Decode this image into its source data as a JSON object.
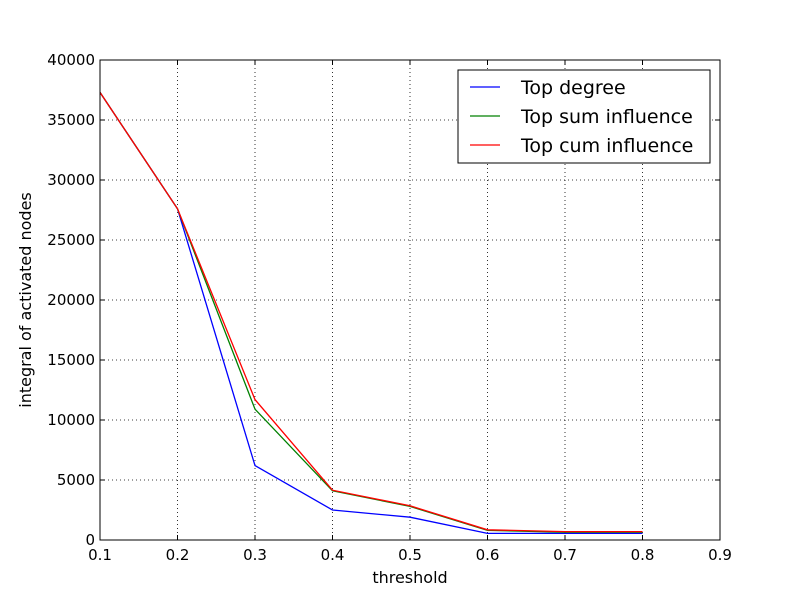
{
  "chart_data": {
    "type": "line",
    "xlabel": "threshold",
    "ylabel": "integral of activated nodes",
    "xlim": [
      0.1,
      0.9
    ],
    "ylim": [
      0,
      40000
    ],
    "xticks": [
      "0.1",
      "0.2",
      "0.3",
      "0.4",
      "0.5",
      "0.6",
      "0.7",
      "0.8",
      "0.9"
    ],
    "yticks": [
      "0",
      "5000",
      "10000",
      "15000",
      "20000",
      "25000",
      "30000",
      "35000",
      "40000"
    ],
    "grid": true,
    "legend_position": "top-right",
    "x": [
      0.1,
      0.2,
      0.3,
      0.4,
      0.5,
      0.6,
      0.7,
      0.8
    ],
    "series": [
      {
        "name": "Top degree",
        "color": "#0000ff",
        "values": [
          37300,
          27600,
          6200,
          2500,
          1900,
          550,
          550,
          550
        ]
      },
      {
        "name": "Top sum influence",
        "color": "#008000",
        "values": [
          37300,
          27600,
          10900,
          4100,
          2800,
          800,
          650,
          650
        ]
      },
      {
        "name": "Top cum influence",
        "color": "#ff0000",
        "values": [
          37300,
          27600,
          11700,
          4150,
          2850,
          850,
          700,
          700
        ]
      }
    ]
  }
}
